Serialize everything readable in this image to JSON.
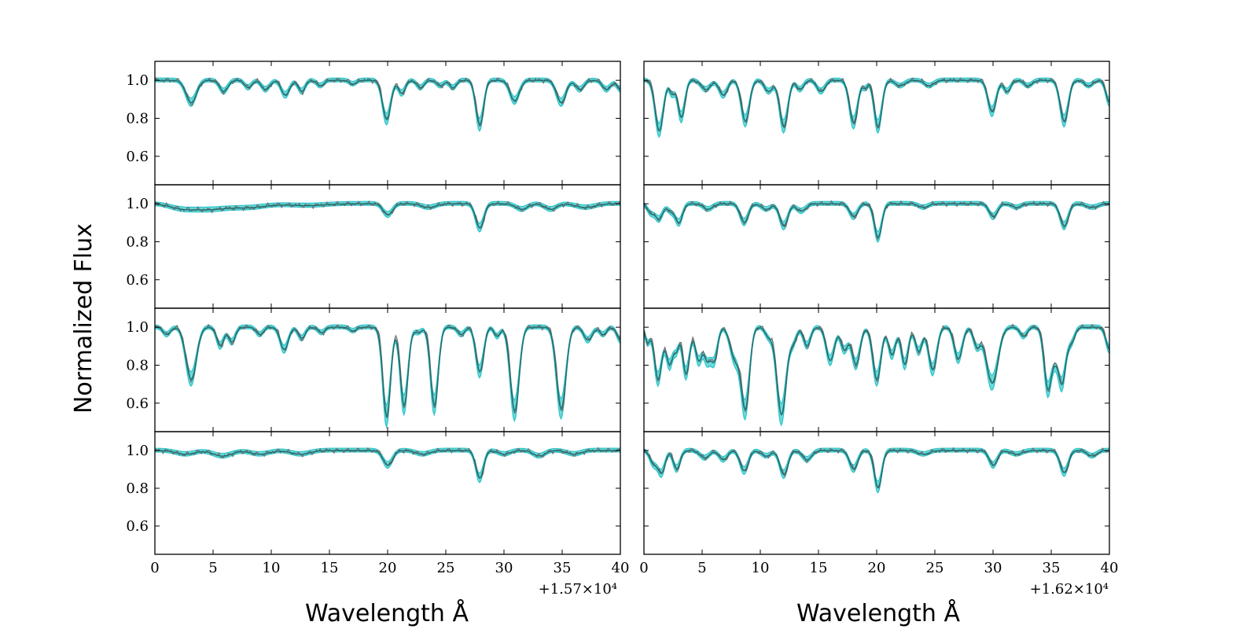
{
  "figure": {
    "ylabel": "Normalized Flux",
    "xlabel_left": "Wavelength Å",
    "xlabel_right": "Wavelength Å",
    "offset_left": "+1.57×10⁴",
    "offset_right": "+1.62×10⁴"
  },
  "colors": {
    "model_band": "#2ec4c9",
    "model_band_fill": "#4fd3d6",
    "data_line": "#6e6e6e",
    "fit_line": "#1f6f6f"
  },
  "chart_data": {
    "type": "line",
    "xlim": [
      0,
      40
    ],
    "ylim": [
      0.45,
      1.1
    ],
    "x_ticks": [
      0,
      5,
      10,
      15,
      20,
      25,
      30,
      35,
      40
    ],
    "y_ticks": [
      0.6,
      0.8,
      1.0
    ],
    "y_tick_labels": [
      "0.6",
      "0.8",
      "1.0"
    ],
    "grid": false,
    "panels": [
      {
        "row": 0,
        "col": 0,
        "lines": [
          [
            3.1,
            0.12,
            0.45
          ],
          [
            5.9,
            0.06,
            0.35
          ],
          [
            8.0,
            0.04,
            0.3
          ],
          [
            9.5,
            0.05,
            0.35
          ],
          [
            11.2,
            0.08,
            0.35
          ],
          [
            12.6,
            0.06,
            0.3
          ],
          [
            14.2,
            0.03,
            0.3
          ],
          [
            17.0,
            0.02,
            0.3
          ],
          [
            19.9,
            0.21,
            0.35
          ],
          [
            21.2,
            0.07,
            0.3
          ],
          [
            22.8,
            0.04,
            0.3
          ],
          [
            24.5,
            0.03,
            0.3
          ],
          [
            25.6,
            0.04,
            0.3
          ],
          [
            27.9,
            0.24,
            0.33
          ],
          [
            30.9,
            0.11,
            0.4
          ],
          [
            34.9,
            0.12,
            0.4
          ],
          [
            36.5,
            0.05,
            0.35
          ],
          [
            38.8,
            0.05,
            0.35
          ],
          [
            40.0,
            0.05,
            0.3
          ]
        ]
      },
      {
        "row": 0,
        "col": 1,
        "lines": [
          [
            1.3,
            0.27,
            0.35
          ],
          [
            2.4,
            0.07,
            0.22
          ],
          [
            3.2,
            0.2,
            0.3
          ],
          [
            5.3,
            0.05,
            0.4
          ],
          [
            6.8,
            0.08,
            0.35
          ],
          [
            8.7,
            0.22,
            0.35
          ],
          [
            10.7,
            0.06,
            0.35
          ],
          [
            12.0,
            0.25,
            0.35
          ],
          [
            13.4,
            0.05,
            0.3
          ],
          [
            15.2,
            0.06,
            0.35
          ],
          [
            18.0,
            0.23,
            0.35
          ],
          [
            19.0,
            0.04,
            0.2
          ],
          [
            20.1,
            0.25,
            0.33
          ],
          [
            22.0,
            0.03,
            0.4
          ],
          [
            24.5,
            0.03,
            0.4
          ],
          [
            29.9,
            0.17,
            0.35
          ],
          [
            31.2,
            0.06,
            0.3
          ],
          [
            33.0,
            0.03,
            0.35
          ],
          [
            36.1,
            0.22,
            0.35
          ],
          [
            38.2,
            0.03,
            0.35
          ],
          [
            40.0,
            0.12,
            0.3
          ]
        ]
      },
      {
        "row": 1,
        "col": 0,
        "lines": [
          [
            2.2,
            0.02,
            1.0
          ],
          [
            4.5,
            0.03,
            1.5
          ],
          [
            8.0,
            0.02,
            1.5
          ],
          [
            13.0,
            0.01,
            1.5
          ],
          [
            20.0,
            0.06,
            0.4
          ],
          [
            23.5,
            0.02,
            0.6
          ],
          [
            27.9,
            0.13,
            0.35
          ],
          [
            31.5,
            0.03,
            0.5
          ],
          [
            34.0,
            0.03,
            0.5
          ],
          [
            37.0,
            0.02,
            0.8
          ]
        ]
      },
      {
        "row": 1,
        "col": 1,
        "lines": [
          [
            0.6,
            0.05,
            0.3
          ],
          [
            1.3,
            0.08,
            0.3
          ],
          [
            2.3,
            0.04,
            0.3
          ],
          [
            3.0,
            0.1,
            0.3
          ],
          [
            5.5,
            0.03,
            0.4
          ],
          [
            8.6,
            0.1,
            0.35
          ],
          [
            10.5,
            0.03,
            0.4
          ],
          [
            12.0,
            0.12,
            0.35
          ],
          [
            13.5,
            0.04,
            0.4
          ],
          [
            18.0,
            0.07,
            0.35
          ],
          [
            20.1,
            0.18,
            0.32
          ],
          [
            24.0,
            0.02,
            0.4
          ],
          [
            30.0,
            0.07,
            0.35
          ],
          [
            32.0,
            0.02,
            0.4
          ],
          [
            36.1,
            0.12,
            0.35
          ],
          [
            38.5,
            0.02,
            0.5
          ]
        ]
      },
      {
        "row": 2,
        "col": 0,
        "lines": [
          [
            1.0,
            0.04,
            0.3
          ],
          [
            3.1,
            0.28,
            0.45
          ],
          [
            5.6,
            0.1,
            0.3
          ],
          [
            6.6,
            0.08,
            0.3
          ],
          [
            9.0,
            0.04,
            0.3
          ],
          [
            11.1,
            0.12,
            0.35
          ],
          [
            12.6,
            0.06,
            0.3
          ],
          [
            14.3,
            0.03,
            0.3
          ],
          [
            17.0,
            0.02,
            0.3
          ],
          [
            19.9,
            0.48,
            0.33
          ],
          [
            21.4,
            0.42,
            0.33
          ],
          [
            22.6,
            0.03,
            0.3
          ],
          [
            24.0,
            0.42,
            0.33
          ],
          [
            26.3,
            0.04,
            0.3
          ],
          [
            27.9,
            0.24,
            0.33
          ],
          [
            29.4,
            0.05,
            0.25
          ],
          [
            30.9,
            0.45,
            0.38
          ],
          [
            34.9,
            0.44,
            0.4
          ],
          [
            37.2,
            0.07,
            0.35
          ],
          [
            38.5,
            0.04,
            0.3
          ],
          [
            40.0,
            0.07,
            0.3
          ]
        ]
      },
      {
        "row": 2,
        "col": 1,
        "lines": [
          [
            0.3,
            0.08,
            0.2
          ],
          [
            1.2,
            0.28,
            0.32
          ],
          [
            2.2,
            0.2,
            0.3
          ],
          [
            2.8,
            0.1,
            0.2
          ],
          [
            3.6,
            0.25,
            0.3
          ],
          [
            4.7,
            0.18,
            0.3
          ],
          [
            5.4,
            0.15,
            0.25
          ],
          [
            6.0,
            0.18,
            0.3
          ],
          [
            7.8,
            0.17,
            0.4
          ],
          [
            8.7,
            0.43,
            0.35
          ],
          [
            10.7,
            0.05,
            0.3
          ],
          [
            11.8,
            0.47,
            0.4
          ],
          [
            12.8,
            0.08,
            0.3
          ],
          [
            14.0,
            0.1,
            0.3
          ],
          [
            16.0,
            0.18,
            0.35
          ],
          [
            17.2,
            0.12,
            0.3
          ],
          [
            18.2,
            0.2,
            0.35
          ],
          [
            20.0,
            0.28,
            0.35
          ],
          [
            21.3,
            0.15,
            0.3
          ],
          [
            22.4,
            0.2,
            0.3
          ],
          [
            23.6,
            0.13,
            0.3
          ],
          [
            24.8,
            0.23,
            0.35
          ],
          [
            27.0,
            0.17,
            0.35
          ],
          [
            28.6,
            0.1,
            0.3
          ],
          [
            29.9,
            0.3,
            0.5
          ],
          [
            32.6,
            0.05,
            0.3
          ],
          [
            34.7,
            0.33,
            0.32
          ],
          [
            35.3,
            0.1,
            0.25
          ],
          [
            35.9,
            0.3,
            0.32
          ],
          [
            36.7,
            0.08,
            0.3
          ],
          [
            40.0,
            0.12,
            0.3
          ]
        ]
      },
      {
        "row": 3,
        "col": 0,
        "lines": [
          [
            2.6,
            0.02,
            0.8
          ],
          [
            5.8,
            0.03,
            0.8
          ],
          [
            9.0,
            0.02,
            0.8
          ],
          [
            12.5,
            0.02,
            0.8
          ],
          [
            20.0,
            0.08,
            0.4
          ],
          [
            23.0,
            0.02,
            0.6
          ],
          [
            27.9,
            0.15,
            0.33
          ],
          [
            30.0,
            0.02,
            0.5
          ],
          [
            33.0,
            0.03,
            0.5
          ],
          [
            36.0,
            0.02,
            0.6
          ]
        ]
      },
      {
        "row": 3,
        "col": 1,
        "lines": [
          [
            0.8,
            0.07,
            0.3
          ],
          [
            1.5,
            0.12,
            0.3
          ],
          [
            2.8,
            0.1,
            0.3
          ],
          [
            5.2,
            0.04,
            0.4
          ],
          [
            6.8,
            0.05,
            0.35
          ],
          [
            8.6,
            0.11,
            0.35
          ],
          [
            10.5,
            0.03,
            0.4
          ],
          [
            12.0,
            0.13,
            0.35
          ],
          [
            14.0,
            0.05,
            0.4
          ],
          [
            18.0,
            0.1,
            0.35
          ],
          [
            20.1,
            0.2,
            0.32
          ],
          [
            24.0,
            0.02,
            0.5
          ],
          [
            30.0,
            0.08,
            0.35
          ],
          [
            32.0,
            0.02,
            0.5
          ],
          [
            36.1,
            0.12,
            0.35
          ],
          [
            38.5,
            0.03,
            0.4
          ]
        ]
      }
    ]
  }
}
